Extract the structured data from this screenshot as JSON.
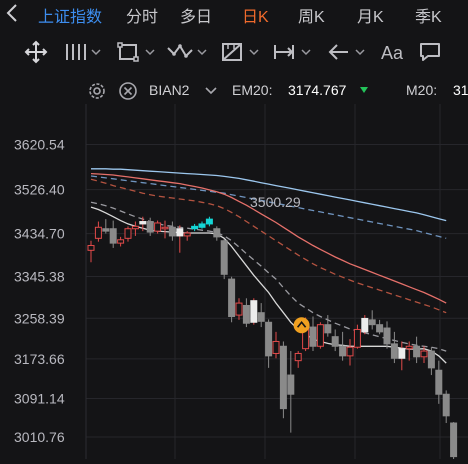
{
  "tabs": {
    "index_name": "上证指数",
    "items": [
      "分时",
      "多日",
      "日K",
      "周K",
      "月K",
      "季K"
    ],
    "active": "日K"
  },
  "toolbar": {
    "tools": [
      "move-tool",
      "vertical-line-tool",
      "rectangle-tool",
      "polyline-tool",
      "measure-tool",
      "range-tool",
      "arrow-tool",
      "text-tool",
      "comment-tool"
    ]
  },
  "indicator": {
    "series_name": "BIAN2",
    "em20_label": "EM20:",
    "em20_value": "3174.767",
    "m20_label": "M20:",
    "m20_value": "31",
    "colors": {
      "em20_arrow": "#23c35a",
      "line_white": "#d8d8d8",
      "line_blue": "#9cc7ee",
      "line_red": "#e5706a",
      "up": "#e24a4a",
      "down": "#8a8a8a",
      "highlight": "#14d6d6",
      "marker": "#f0a020"
    }
  },
  "chart_data": {
    "type": "candlestick",
    "y_ticks": [
      "3620.54",
      "3526.40",
      "3434.70",
      "3345.38",
      "3258.39",
      "3173.66",
      "3091.14",
      "3010.76"
    ],
    "y_tick_values": [
      3620.54,
      3526.4,
      3434.7,
      3345.38,
      3258.39,
      3173.66,
      3091.14,
      3010.76
    ],
    "ylim": [
      2965,
      3705
    ],
    "grid": true,
    "annotation": "3500.29",
    "annotation_value": 3500.29,
    "candles": [
      {
        "o": 3400,
        "h": 3420,
        "l": 3375,
        "c": 3410
      },
      {
        "o": 3425,
        "h": 3460,
        "l": 3418,
        "c": 3448
      },
      {
        "o": 3445,
        "h": 3465,
        "l": 3435,
        "c": 3440
      },
      {
        "o": 3445,
        "h": 3462,
        "l": 3405,
        "c": 3415
      },
      {
        "o": 3415,
        "h": 3428,
        "l": 3408,
        "c": 3422
      },
      {
        "o": 3425,
        "h": 3450,
        "l": 3418,
        "c": 3445
      },
      {
        "o": 3445,
        "h": 3460,
        "l": 3430,
        "c": 3450
      },
      {
        "o": 3455,
        "h": 3470,
        "l": 3440,
        "c": 3460
      },
      {
        "o": 3460,
        "h": 3468,
        "l": 3430,
        "c": 3438
      },
      {
        "o": 3440,
        "h": 3462,
        "l": 3435,
        "c": 3457
      },
      {
        "o": 3445,
        "h": 3462,
        "l": 3425,
        "c": 3448
      },
      {
        "o": 3448,
        "h": 3460,
        "l": 3420,
        "c": 3430
      },
      {
        "o": 3430,
        "h": 3452,
        "l": 3395,
        "c": 3445
      },
      {
        "o": 3430,
        "h": 3440,
        "l": 3420,
        "c": 3436
      },
      {
        "o": 3445,
        "h": 3455,
        "l": 3440,
        "c": 3450
      },
      {
        "o": 3448,
        "h": 3460,
        "l": 3445,
        "c": 3455
      },
      {
        "o": 3455,
        "h": 3470,
        "l": 3450,
        "c": 3465
      },
      {
        "o": 3445,
        "h": 3450,
        "l": 3420,
        "c": 3428
      },
      {
        "o": 3420,
        "h": 3424,
        "l": 3340,
        "c": 3350
      },
      {
        "o": 3340,
        "h": 3345,
        "l": 3250,
        "c": 3262
      },
      {
        "o": 3265,
        "h": 3300,
        "l": 3255,
        "c": 3290
      },
      {
        "o": 3285,
        "h": 3300,
        "l": 3240,
        "c": 3248
      },
      {
        "o": 3250,
        "h": 3300,
        "l": 3245,
        "c": 3295
      },
      {
        "o": 3270,
        "h": 3290,
        "l": 3240,
        "c": 3252
      },
      {
        "o": 3250,
        "h": 3256,
        "l": 3155,
        "c": 3180
      },
      {
        "o": 3185,
        "h": 3230,
        "l": 3175,
        "c": 3210
      },
      {
        "o": 3200,
        "h": 3210,
        "l": 3050,
        "c": 3070
      },
      {
        "o": 3140,
        "h": 3190,
        "l": 3020,
        "c": 3100
      },
      {
        "o": 3170,
        "h": 3190,
        "l": 3155,
        "c": 3185
      },
      {
        "o": 3195,
        "h": 3260,
        "l": 3190,
        "c": 3248
      },
      {
        "o": 3240,
        "h": 3262,
        "l": 3190,
        "c": 3200
      },
      {
        "o": 3200,
        "h": 3250,
        "l": 3195,
        "c": 3245
      },
      {
        "o": 3245,
        "h": 3265,
        "l": 3220,
        "c": 3228
      },
      {
        "o": 3220,
        "h": 3235,
        "l": 3190,
        "c": 3200
      },
      {
        "o": 3200,
        "h": 3230,
        "l": 3170,
        "c": 3180
      },
      {
        "o": 3180,
        "h": 3215,
        "l": 3160,
        "c": 3198
      },
      {
        "o": 3198,
        "h": 3245,
        "l": 3195,
        "c": 3235
      },
      {
        "o": 3230,
        "h": 3265,
        "l": 3225,
        "c": 3258
      },
      {
        "o": 3255,
        "h": 3275,
        "l": 3235,
        "c": 3245
      },
      {
        "o": 3245,
        "h": 3255,
        "l": 3225,
        "c": 3230
      },
      {
        "o": 3238,
        "h": 3252,
        "l": 3195,
        "c": 3205
      },
      {
        "o": 3205,
        "h": 3230,
        "l": 3165,
        "c": 3175
      },
      {
        "o": 3175,
        "h": 3210,
        "l": 3150,
        "c": 3195
      },
      {
        "o": 3195,
        "h": 3210,
        "l": 3170,
        "c": 3200
      },
      {
        "o": 3200,
        "h": 3220,
        "l": 3165,
        "c": 3178
      },
      {
        "o": 3178,
        "h": 3200,
        "l": 3165,
        "c": 3190
      },
      {
        "o": 3190,
        "h": 3198,
        "l": 3140,
        "c": 3155
      },
      {
        "o": 3150,
        "h": 3170,
        "l": 3080,
        "c": 3100
      },
      {
        "o": 3100,
        "h": 3108,
        "l": 3040,
        "c": 3055
      },
      {
        "o": 3040,
        "h": 3042,
        "l": 2965,
        "c": 2970
      }
    ],
    "ma_white": [
      3490,
      3485,
      3478,
      3470,
      3462,
      3455,
      3450,
      3446,
      3442,
      3440,
      3439,
      3438,
      3437,
      3436,
      3436,
      3436,
      3436,
      3434,
      3425,
      3408,
      3388,
      3368,
      3348,
      3330,
      3312,
      3290,
      3270,
      3250,
      3235,
      3225,
      3215,
      3210,
      3206,
      3203,
      3202,
      3200,
      3200,
      3200,
      3200,
      3200,
      3200,
      3198,
      3196,
      3194,
      3194,
      3195,
      3190,
      3180,
      3165
    ],
    "ma_dash_white": [
      3500,
      3497,
      3493,
      3488,
      3482,
      3476,
      3470,
      3465,
      3460,
      3456,
      3452,
      3450,
      3448,
      3446,
      3444,
      3442,
      3440,
      3437,
      3430,
      3420,
      3407,
      3393,
      3380,
      3367,
      3353,
      3340,
      3322,
      3305,
      3290,
      3280,
      3270,
      3262,
      3255,
      3248,
      3242,
      3236,
      3232,
      3228,
      3224,
      3220,
      3216,
      3212,
      3208,
      3205,
      3202,
      3200,
      3198,
      3195,
      3190
    ],
    "ma_red": [
      3560,
      3559,
      3558,
      3557,
      3555,
      3553,
      3551,
      3549,
      3547,
      3545,
      3543,
      3541,
      3539,
      3536,
      3533,
      3530,
      3526,
      3522,
      3517,
      3510,
      3502,
      3494,
      3485,
      3476,
      3467,
      3458,
      3448,
      3438,
      3428,
      3419,
      3410,
      3402,
      3394,
      3386,
      3379,
      3372,
      3366,
      3360,
      3354,
      3348,
      3342,
      3336,
      3330,
      3324,
      3318,
      3312,
      3305,
      3298,
      3290
    ],
    "ma_dash_red": [
      3548,
      3544,
      3540,
      3535,
      3531,
      3527,
      3523,
      3519,
      3516,
      3513,
      3511,
      3509,
      3507,
      3505,
      3503,
      3500,
      3497,
      3493,
      3487,
      3479,
      3470,
      3460,
      3450,
      3440,
      3430,
      3420,
      3410,
      3400,
      3390,
      3381,
      3372,
      3364,
      3357,
      3350,
      3344,
      3338,
      3332,
      3327,
      3322,
      3317,
      3312,
      3307,
      3302,
      3297,
      3292,
      3287,
      3282,
      3276,
      3270
    ],
    "ma_blue": [
      3570,
      3570,
      3570,
      3569,
      3569,
      3568,
      3567,
      3566,
      3565,
      3564,
      3563,
      3562,
      3561,
      3560,
      3559,
      3558,
      3557,
      3556,
      3554,
      3552,
      3550,
      3547,
      3544,
      3541,
      3538,
      3535,
      3532,
      3529,
      3526,
      3523,
      3520,
      3517,
      3514,
      3511,
      3508,
      3505,
      3502,
      3499,
      3496,
      3493,
      3490,
      3487,
      3484,
      3481,
      3478,
      3474,
      3470,
      3466,
      3462
    ],
    "ma_dash_blue": [
      3555,
      3553,
      3551,
      3549,
      3547,
      3545,
      3543,
      3541,
      3539,
      3537,
      3535,
      3533,
      3531,
      3529,
      3527,
      3525,
      3523,
      3521,
      3519,
      3516,
      3513,
      3510,
      3507,
      3504,
      3501,
      3498,
      3495,
      3492,
      3489,
      3486,
      3483,
      3480,
      3477,
      3474,
      3471,
      3468,
      3465,
      3462,
      3459,
      3456,
      3453,
      3450,
      3447,
      3444,
      3441,
      3437,
      3433,
      3429,
      3425
    ],
    "highlight_candles": [
      14,
      15,
      16
    ],
    "marker_candle": 29
  }
}
